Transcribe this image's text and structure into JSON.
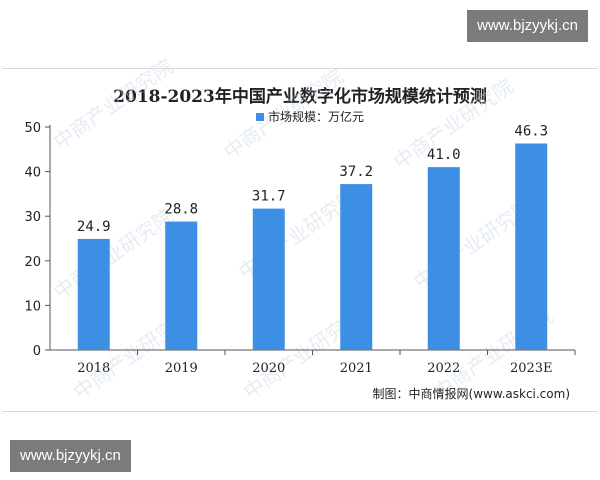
{
  "badges": {
    "top": "www.bjzyykj.cn",
    "bottom": "www.bjzyykj.cn"
  },
  "watermark": "中商产业研究院",
  "source": "制图：中商情报网(www.askci.com)",
  "colors": {
    "bar": "#3d8fe6",
    "axis": "#555555",
    "text": "#222222"
  },
  "chart_data": {
    "type": "bar",
    "title": "2018-2023年中国产业数字化市场规模统计预测",
    "categories": [
      "2018",
      "2019",
      "2020",
      "2021",
      "2022",
      "2023E"
    ],
    "series": [
      {
        "name": "市场规模：万亿元",
        "values": [
          24.9,
          28.8,
          31.7,
          37.2,
          41.0,
          46.3
        ]
      }
    ],
    "value_labels": [
      "24.9",
      "28.8",
      "31.7",
      "37.2",
      "41.0",
      "46.3"
    ],
    "ylim": [
      0,
      50
    ],
    "yticks": [
      0,
      10,
      20,
      30,
      40,
      50
    ],
    "grid": false,
    "legend_position": "top-center"
  }
}
